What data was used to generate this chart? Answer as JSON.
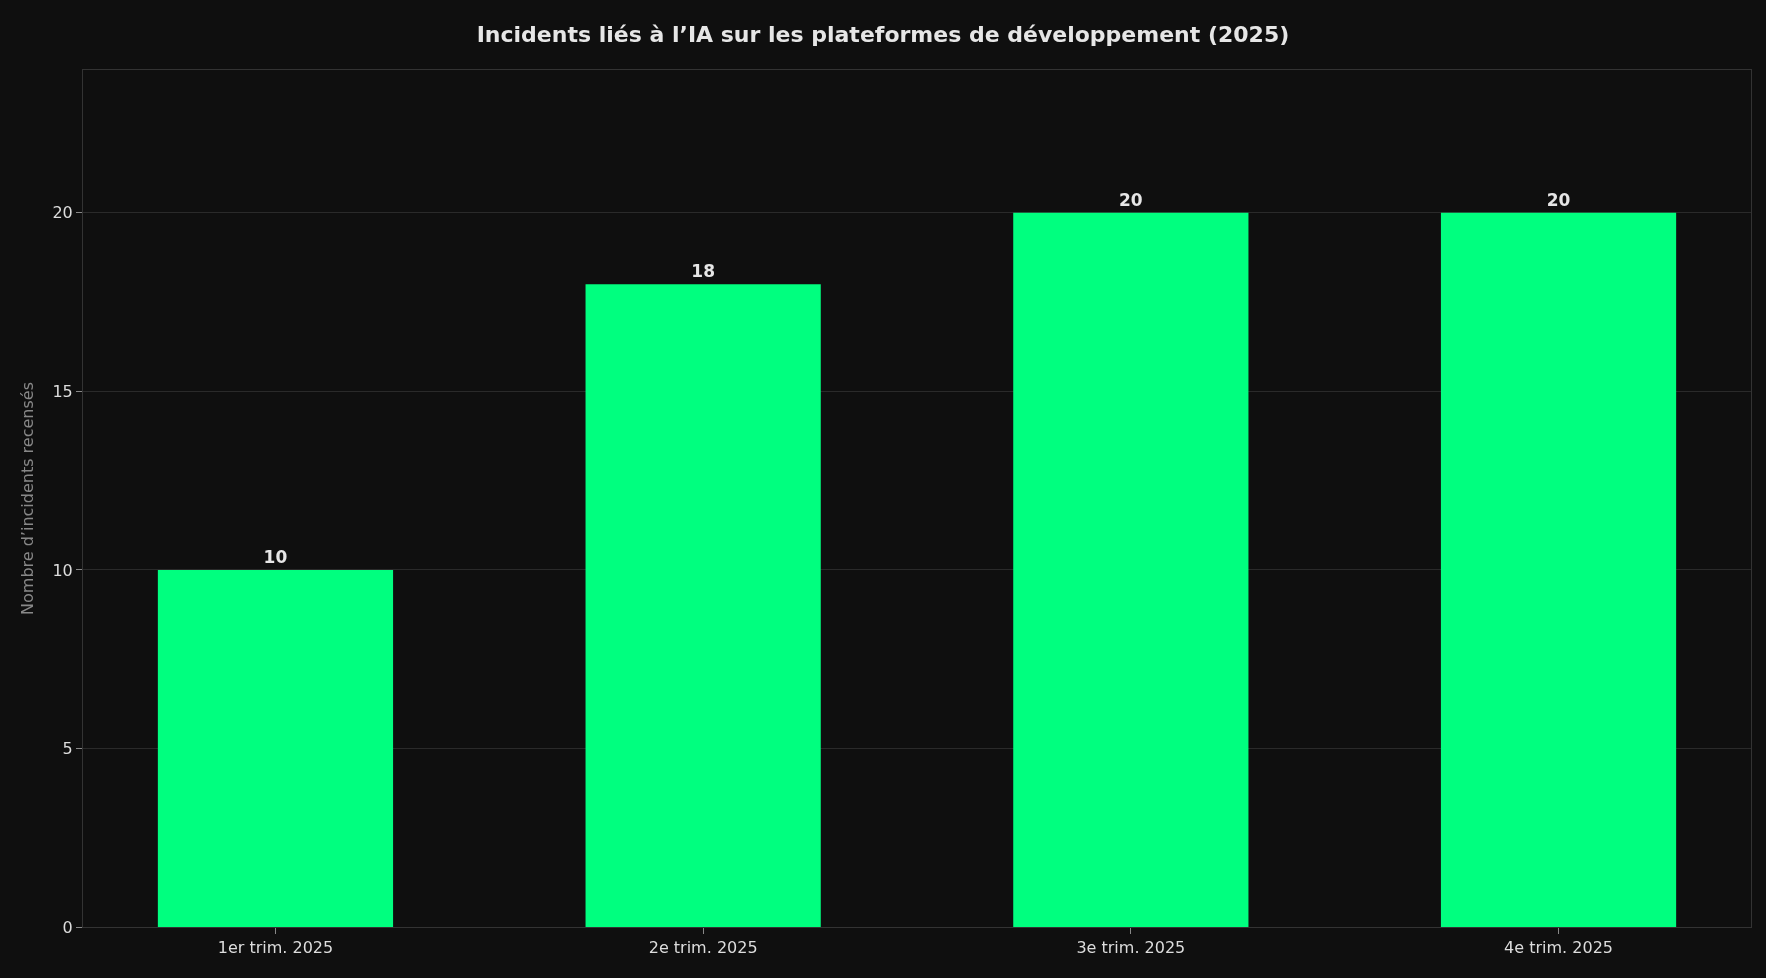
{
  "chart_data": {
    "type": "bar",
    "title": "Incidents liés à l’IA sur les plateformes de développement (2025)",
    "ylabel": "Nombre d’incidents recensés",
    "categories": [
      "1er trim. 2025",
      "2e trim. 2025",
      "3e trim. 2025",
      "4e trim. 2025"
    ],
    "values": [
      10,
      18,
      20,
      20
    ],
    "color": "#00ff7f",
    "ylim": [
      0,
      24
    ],
    "yticks": [
      0,
      5,
      10,
      15,
      20
    ],
    "grid": "y",
    "data_labels": true,
    "legend": false
  }
}
